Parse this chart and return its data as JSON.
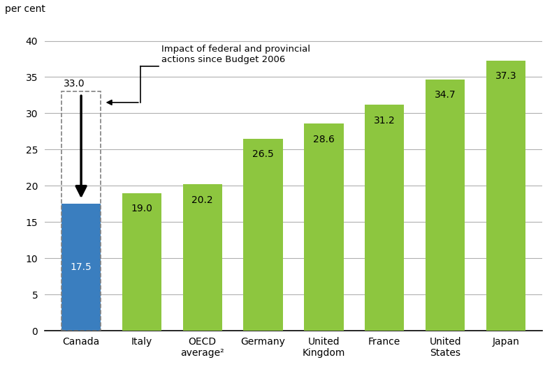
{
  "categories": [
    "Canada",
    "Italy",
    "OECD\naverage²",
    "Germany",
    "United\nKingdom",
    "France",
    "United\nStates",
    "Japan"
  ],
  "values": [
    17.5,
    19.0,
    20.2,
    26.5,
    28.6,
    31.2,
    34.7,
    37.3
  ],
  "canada_old_value": 33.0,
  "bar_colors": [
    "#3a7ebf",
    "#8dc63f",
    "#8dc63f",
    "#8dc63f",
    "#8dc63f",
    "#8dc63f",
    "#8dc63f",
    "#8dc63f"
  ],
  "ylabel": "per cent",
  "ylim": [
    0,
    42
  ],
  "yticks": [
    0,
    5,
    10,
    15,
    20,
    25,
    30,
    35,
    40
  ],
  "annotation_text": "Impact of federal and provincial\nactions since Budget 2006",
  "value_label_color_canada": "#ffffff",
  "value_label_color_others": "#000000",
  "background_color": "#ffffff",
  "grid_color": "#b0b0b0",
  "dashed_box_color": "#808080",
  "arrow_color": "#000000",
  "bar_width": 0.65
}
